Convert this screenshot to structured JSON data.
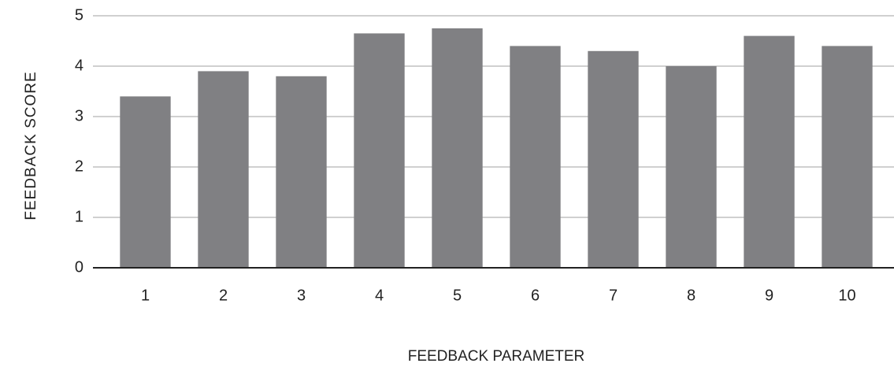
{
  "chart_data": {
    "type": "bar",
    "x_label": "FEEDBACK PARAMETER",
    "y_label": "FEEDBACK SCORE",
    "categories": [
      "1",
      "2",
      "3",
      "4",
      "5",
      "6",
      "7",
      "8",
      "9",
      "10"
    ],
    "values": [
      3.4,
      3.9,
      3.8,
      4.65,
      4.75,
      4.4,
      4.3,
      4.0,
      4.6,
      4.4
    ],
    "color": "#808083",
    "ylim": [
      0,
      5
    ],
    "yticks": [
      0,
      1,
      2,
      3,
      4,
      5
    ],
    "grid": true
  }
}
